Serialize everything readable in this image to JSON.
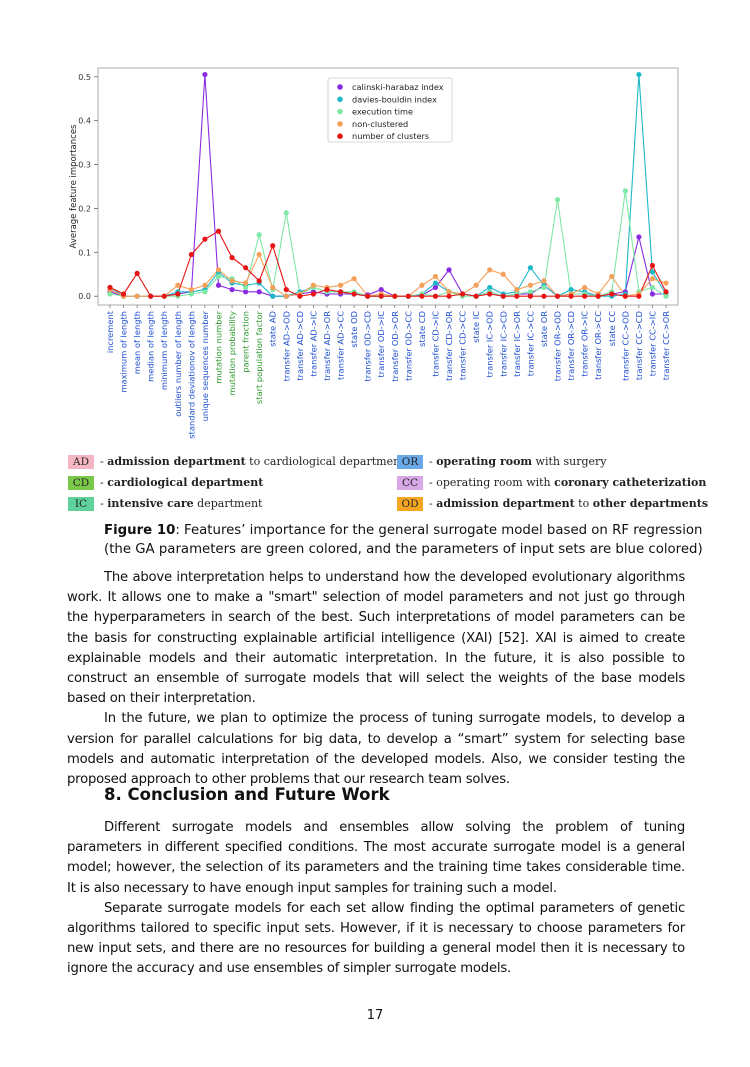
{
  "chart_data": {
    "type": "line",
    "ylabel": "Average feature importances",
    "ylim": [
      -0.02,
      0.52
    ],
    "yticks": [
      0.0,
      0.1,
      0.2,
      0.3,
      0.4,
      0.5
    ],
    "ytick_labels": [
      "0.0",
      "0.1",
      "0.2",
      "0.3",
      "0.4",
      "0.5"
    ],
    "legend_position": "top-center",
    "categories": [
      "increment",
      "maximum of length",
      "mean of length",
      "median of length",
      "minimum of length",
      "outliers number of length",
      "standard deviationov of length",
      "unique sequences number",
      "mutation number",
      "mutation probability",
      "parent fraction",
      "start population factor",
      "state AD",
      "transfer AD->OD",
      "transfer AD->CD",
      "transfer AD->IC",
      "transfer AD->OR",
      "transfer AD->CC",
      "state OD",
      "transfer OD->CD",
      "transfer OD->IC",
      "transfer OD->OR",
      "transfer OD->CC",
      "state CD",
      "transfer CD->IC",
      "transfer CD->OR",
      "transfer CD->CC",
      "state IC",
      "transfer IC->OD",
      "transfer IC->CD",
      "transfer IC->OR",
      "transfer IC->CC",
      "state OR",
      "transfer OR->OD",
      "transfer OR->CD",
      "transfer OR->IC",
      "transfer OR->CC",
      "state CC",
      "transfer CC->OD",
      "transfer CC->CD",
      "transfer CC->IC",
      "transfer CC->OR"
    ],
    "category_groups": [
      "blue",
      "blue",
      "blue",
      "blue",
      "blue",
      "blue",
      "blue",
      "blue",
      "green",
      "green",
      "green",
      "green",
      "blue",
      "blue",
      "blue",
      "blue",
      "blue",
      "blue",
      "blue",
      "blue",
      "blue",
      "blue",
      "blue",
      "blue",
      "blue",
      "blue",
      "blue",
      "blue",
      "blue",
      "blue",
      "blue",
      "blue",
      "blue",
      "blue",
      "blue",
      "blue",
      "blue",
      "blue",
      "blue",
      "blue",
      "blue",
      "blue"
    ],
    "group_colors": {
      "blue": "#1f4fd1",
      "green": "#2e9a2e"
    },
    "series": [
      {
        "name": "calinski-harabaz index",
        "color": "#8a2be2",
        "values": [
          0.01,
          0,
          0,
          0,
          0,
          0.005,
          0.01,
          0.505,
          0.025,
          0.015,
          0.01,
          0.01,
          0,
          0,
          0.005,
          0.01,
          0.005,
          0.005,
          0.005,
          0.003,
          0.015,
          0,
          0,
          0.002,
          0.02,
          0.06,
          0.005,
          0,
          0.01,
          0,
          0.005,
          0.005,
          0.025,
          0,
          0.005,
          0.005,
          0,
          0.005,
          0.01,
          0.135,
          0.005,
          0.005
        ]
      },
      {
        "name": "davies-bouldin index",
        "color": "#1fb8c8",
        "values": [
          0.02,
          0,
          0,
          0,
          0,
          0.01,
          0.01,
          0.015,
          0.055,
          0.03,
          0.025,
          0.03,
          0,
          0,
          0.01,
          0.02,
          0.01,
          0.01,
          0.005,
          0,
          0,
          0,
          0,
          0.005,
          0.03,
          0.01,
          0.005,
          0,
          0.02,
          0.005,
          0.01,
          0.065,
          0.025,
          0,
          0.015,
          0.01,
          0,
          0,
          0.005,
          0.505,
          0.055,
          0.005
        ]
      },
      {
        "name": "execution time",
        "color": "#7ee8a6",
        "values": [
          0.005,
          0,
          0,
          0,
          0,
          0,
          0.005,
          0.01,
          0.045,
          0.04,
          0.02,
          0.14,
          0.015,
          0.19,
          0.005,
          0.02,
          0.01,
          0.01,
          0.01,
          0,
          0,
          0,
          0,
          0.005,
          0,
          0.01,
          0,
          0,
          0.01,
          0,
          0.005,
          0.01,
          0.02,
          0.22,
          0.005,
          0.005,
          0,
          0.01,
          0.24,
          0.01,
          0.02,
          0
        ]
      },
      {
        "name": "non-clustered",
        "color": "#f5a05a",
        "values": [
          0.015,
          0,
          0,
          0,
          0,
          0.025,
          0.015,
          0.025,
          0.06,
          0.035,
          0.03,
          0.095,
          0.02,
          0,
          0.005,
          0.025,
          0.02,
          0.025,
          0.04,
          0,
          0.005,
          0,
          0,
          0.025,
          0.045,
          0.01,
          0.005,
          0.025,
          0.06,
          0.05,
          0.015,
          0.025,
          0.035,
          0,
          0.005,
          0.02,
          0.005,
          0.045,
          0,
          0.005,
          0.04,
          0.03
        ]
      },
      {
        "name": "number of clusters",
        "color": "#e81515",
        "values": [
          0.02,
          0.005,
          0.052,
          0,
          0,
          0.005,
          0.095,
          0.13,
          0.148,
          0.088,
          0.065,
          0.035,
          0.115,
          0.015,
          0,
          0.005,
          0.015,
          0.01,
          0.005,
          0,
          0,
          0,
          0,
          0,
          0,
          0,
          0.005,
          0,
          0.005,
          0,
          0,
          0,
          0,
          0,
          0,
          0,
          0,
          0.005,
          0,
          0,
          0.07,
          0.01
        ]
      }
    ]
  },
  "abbreviations": [
    {
      "tag": "AD",
      "color": "#f4b6c2",
      "bold": "admission department",
      "rest": " to cardiological departments"
    },
    {
      "tag": "CD",
      "color": "#7ac94a",
      "bold": "cardiological department",
      "rest": ""
    },
    {
      "tag": "IC",
      "color": "#5ed29a",
      "bold": "intensive care",
      "rest": " department"
    },
    {
      "tag": "OR",
      "color": "#6aa8e8",
      "bold": "operating room",
      "rest": " with surgery"
    },
    {
      "tag": "CC",
      "color": "#d8a8e6",
      "pre": "operating room with ",
      "bold": "coronary catheterization",
      "rest": ""
    },
    {
      "tag": "OD",
      "color": "#f5a623",
      "bold": "admission department",
      "mid": " to ",
      "bold2": "other departments",
      "rest": ""
    }
  ],
  "caption": {
    "label": "Figure 10",
    "text1": ": Features’ importance for the general surrogate model based on RF regression",
    "text2": "(the GA parameters are green colored, and the parameters of input sets are blue colored)"
  },
  "paragraphs_top": [
    "The above interpretation helps to understand how the developed evolutionary algorithms work. It allows one to make a \"smart\" selection of model parameters and not just go through the hyperparameters in search of the best. Such interpretations of model parameters can be the basis for constructing explainable artificial intelligence (XAI) [52]. XAI is aimed to create explainable models and their automatic interpretation. In the future, it is also possible to construct an ensemble of surrogate models that will select the weights of the base models based on their interpretation.",
    "In the future, we plan to optimize the process of tuning surrogate models, to develop a version for parallel calculations for big data, to develop a “smart” system for selecting base models and automatic interpretation of the developed models. Also, we consider testing the proposed approach to other problems that our research team solves."
  ],
  "section_heading": "8. Conclusion and Future Work",
  "paragraphs_bottom": [
    "Different surrogate models and ensembles allow solving the problem of tuning parameters in different specified conditions. The most accurate surrogate model is a general model; however, the selection of its parameters and the training time takes considerable time. It is also necessary to have enough input samples for training such a model.",
    "Separate surrogate models for each set allow finding the optimal parameters of genetic algorithms tailored to specific input sets. However, if it is necessary to choose parameters for new input sets, and there are no resources for building a general model then it is necessary to ignore the accuracy and use ensembles of simpler surrogate models."
  ],
  "page_number": "17"
}
